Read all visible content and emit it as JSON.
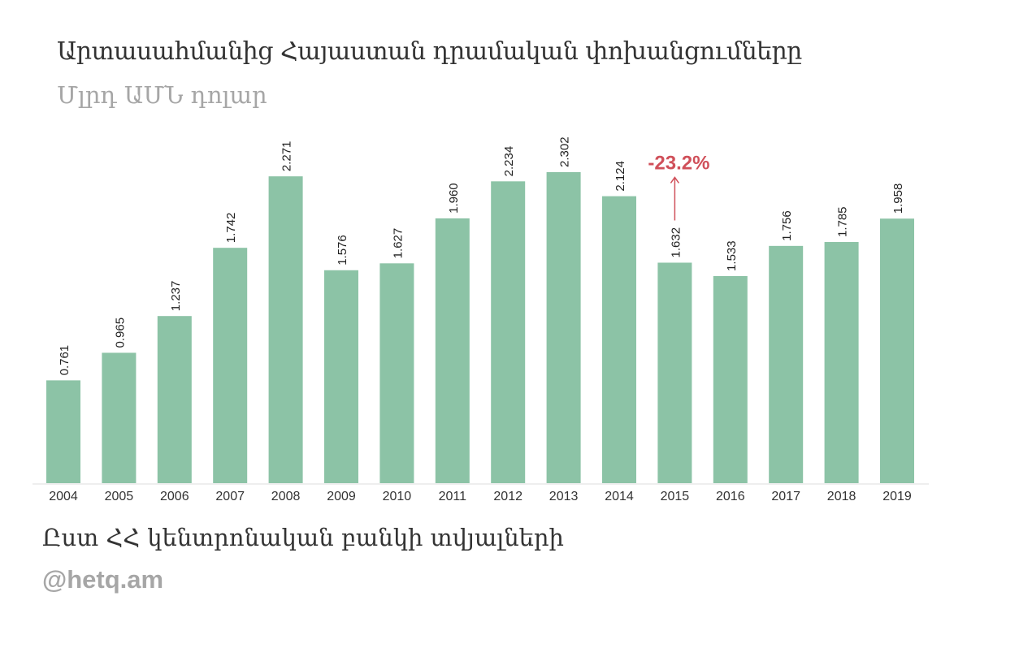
{
  "header": {
    "title": "Արտասահմանից Հայաստան դրամական փոխանցումները",
    "subtitle": "Մլրդ ԱՄՆ դոլար"
  },
  "footer": {
    "source": "Ըստ ՀՀ կենտրոնական բանկի տվյալների",
    "credit": "@hetq.am"
  },
  "colors": {
    "bar": "#8cc3a6",
    "annotation": "#d0505a",
    "axis": "#dddddd",
    "label": "#222222"
  },
  "chart_data": {
    "type": "bar",
    "categories": [
      "2004",
      "2005",
      "2006",
      "2007",
      "2008",
      "2009",
      "2010",
      "2011",
      "2012",
      "2013",
      "2014",
      "2015",
      "2016",
      "2017",
      "2018",
      "2019"
    ],
    "values": [
      0.761,
      0.965,
      1.237,
      1.742,
      2.271,
      1.576,
      1.627,
      1.96,
      2.234,
      2.302,
      2.124,
      1.632,
      1.533,
      1.756,
      1.785,
      1.958
    ],
    "value_labels": [
      "0.761",
      "0.965",
      "1.237",
      "1.742",
      "2.271",
      "1.576",
      "1.627",
      "1.960",
      "2.234",
      "2.302",
      "2.124",
      "1.632",
      "1.533",
      "1.756",
      "1.785",
      "1.958"
    ],
    "ylim": [
      0,
      2.302
    ],
    "grid": false,
    "annotation": {
      "category": "2015",
      "text": "-23.2%",
      "arrow": "up"
    }
  }
}
